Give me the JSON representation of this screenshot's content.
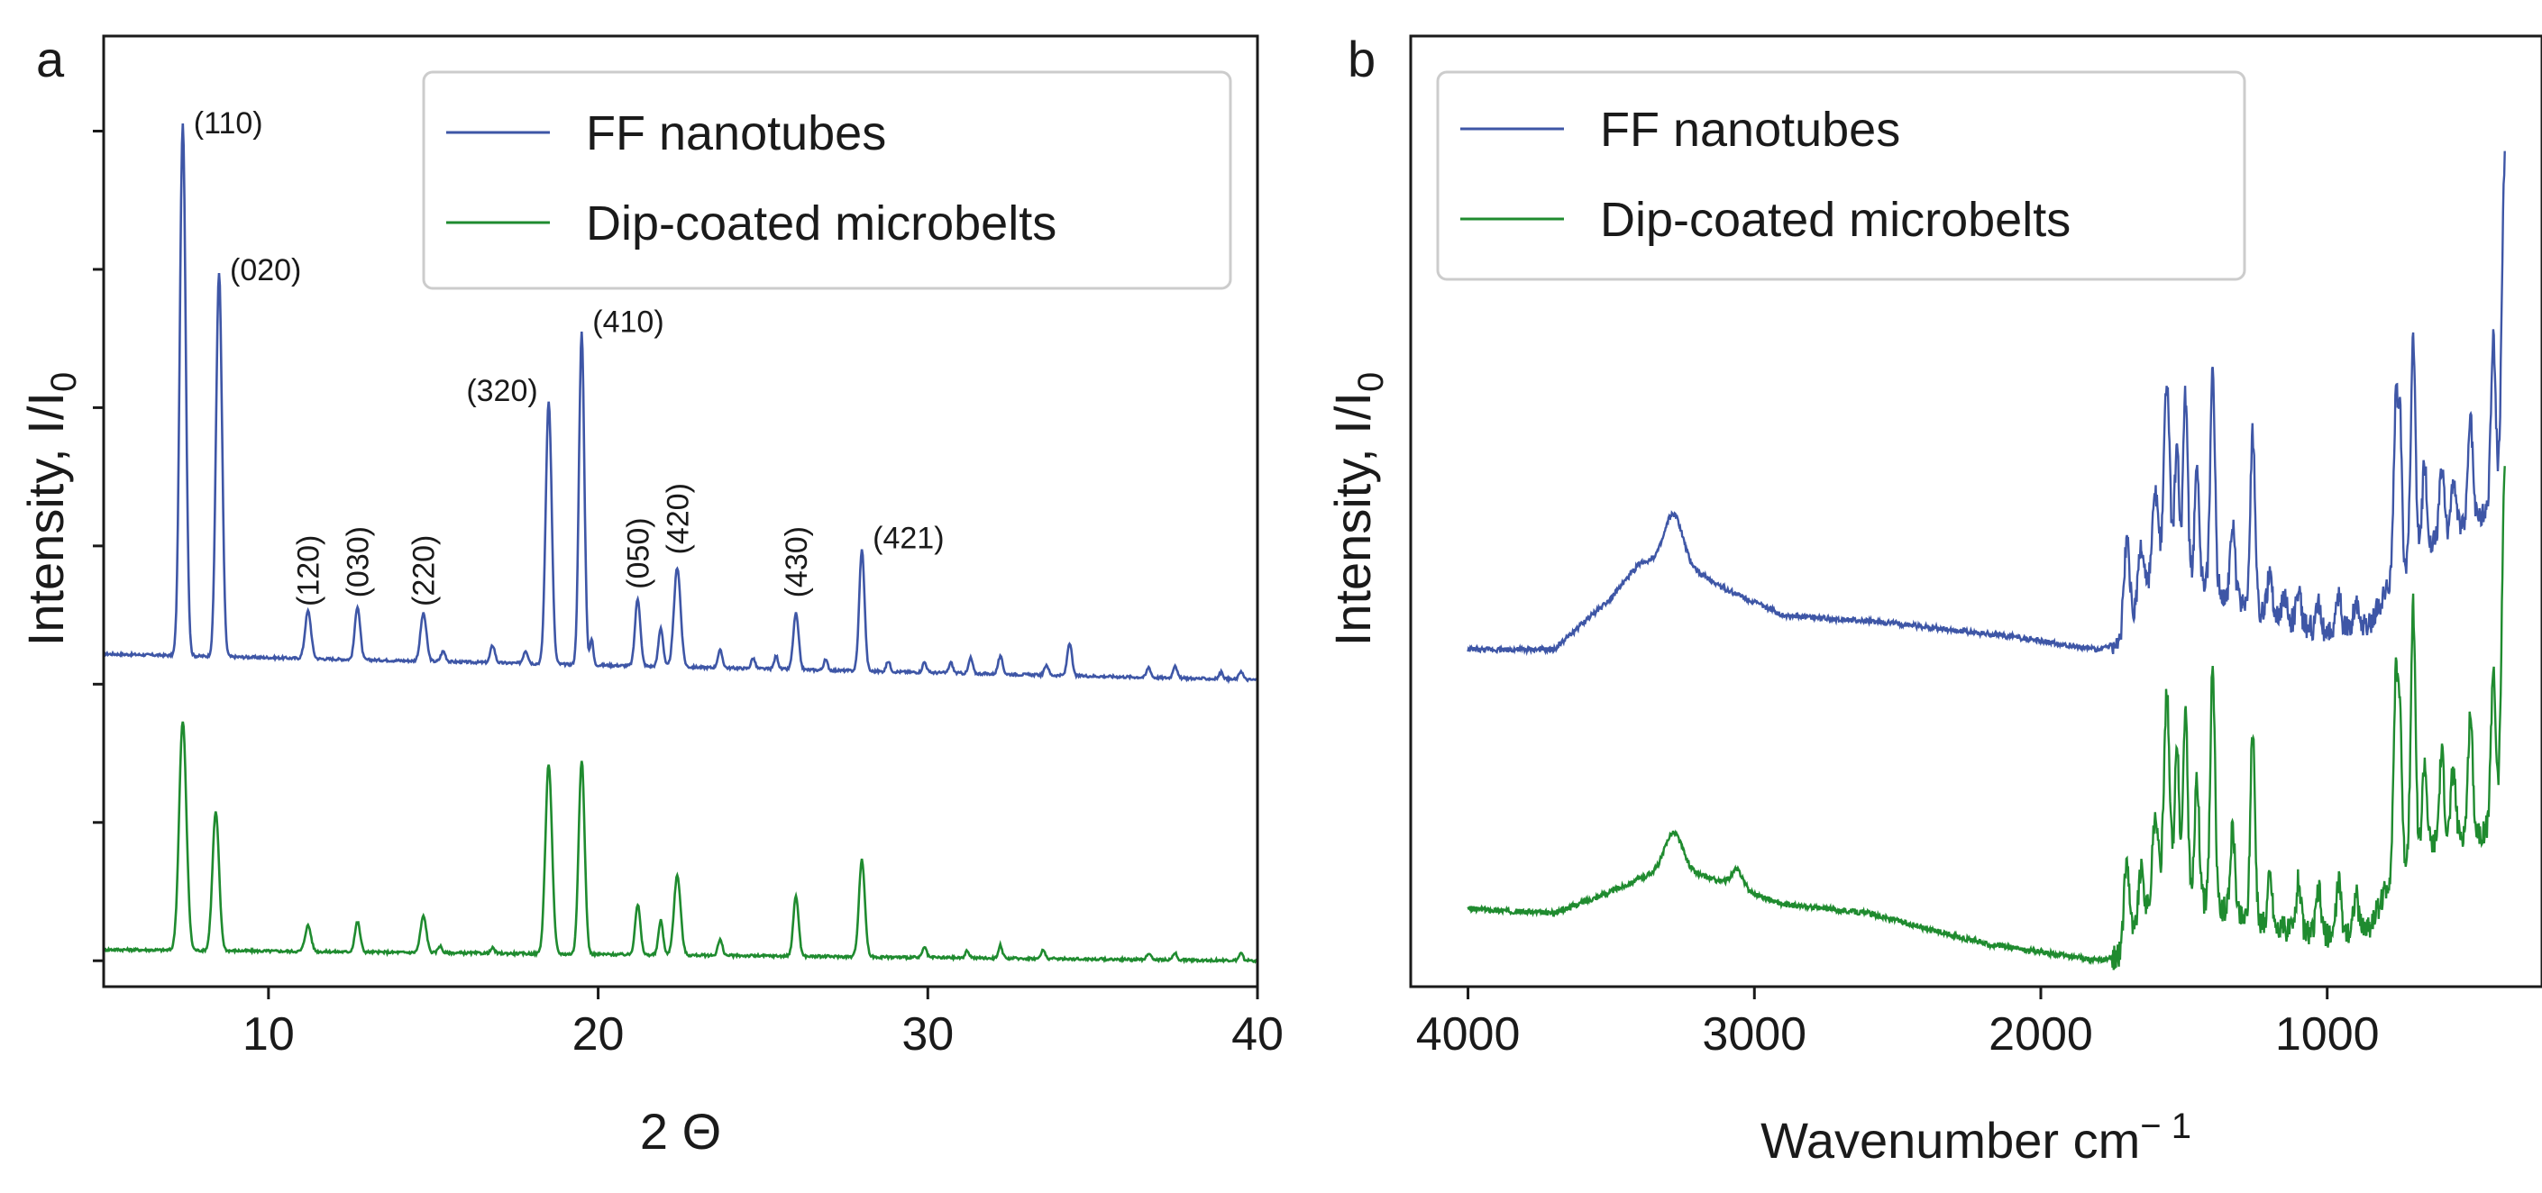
{
  "figure": {
    "panel_a_label": "a",
    "panel_b_label": "b"
  },
  "colors": {
    "blue": "#3e56a6",
    "green": "#1f8b2f",
    "axis": "#1a1a1a",
    "legend_border": "#cccccc"
  },
  "chart_data": [
    {
      "panel": "a",
      "type": "line",
      "xlabel": "2 Θ",
      "ylabel": "Intensity, I/I",
      "ylabel_sub": "0",
      "xlim": [
        5,
        40
      ],
      "ylim": [
        0,
        1.1
      ],
      "xticks": [
        10,
        20,
        30,
        40
      ],
      "ytick_values": [
        0.03,
        0.19,
        0.35,
        0.51,
        0.67,
        0.83,
        0.99
      ],
      "legend": {
        "position": "top-right",
        "entries": [
          "FF nanotubes",
          "Dip-coated microbelts"
        ]
      },
      "series": [
        {
          "name": "FF nanotubes",
          "baseline": 0.385,
          "baseline_end": 0.355,
          "peaks": [
            {
              "x": 7.4,
              "h": 0.615,
              "w": 0.09
            },
            {
              "x": 8.5,
              "h": 0.445,
              "w": 0.09
            },
            {
              "x": 11.2,
              "h": 0.055,
              "w": 0.09
            },
            {
              "x": 12.7,
              "h": 0.062,
              "w": 0.08
            },
            {
              "x": 14.7,
              "h": 0.055,
              "w": 0.09
            },
            {
              "x": 15.3,
              "h": 0.012,
              "w": 0.07
            },
            {
              "x": 16.8,
              "h": 0.02,
              "w": 0.07
            },
            {
              "x": 17.8,
              "h": 0.015,
              "w": 0.07
            },
            {
              "x": 18.5,
              "h": 0.305,
              "w": 0.09
            },
            {
              "x": 19.5,
              "h": 0.385,
              "w": 0.08
            },
            {
              "x": 19.8,
              "h": 0.03,
              "w": 0.05
            },
            {
              "x": 21.2,
              "h": 0.078,
              "w": 0.08
            },
            {
              "x": 21.9,
              "h": 0.045,
              "w": 0.07
            },
            {
              "x": 22.4,
              "h": 0.115,
              "w": 0.1
            },
            {
              "x": 23.7,
              "h": 0.02,
              "w": 0.07
            },
            {
              "x": 24.7,
              "h": 0.012,
              "w": 0.06
            },
            {
              "x": 25.4,
              "h": 0.015,
              "w": 0.06
            },
            {
              "x": 26.0,
              "h": 0.065,
              "w": 0.08
            },
            {
              "x": 26.9,
              "h": 0.012,
              "w": 0.06
            },
            {
              "x": 28.0,
              "h": 0.14,
              "w": 0.08
            },
            {
              "x": 28.8,
              "h": 0.012,
              "w": 0.06
            },
            {
              "x": 29.9,
              "h": 0.012,
              "w": 0.06
            },
            {
              "x": 30.7,
              "h": 0.012,
              "w": 0.06
            },
            {
              "x": 31.3,
              "h": 0.018,
              "w": 0.06
            },
            {
              "x": 32.2,
              "h": 0.02,
              "w": 0.07
            },
            {
              "x": 33.6,
              "h": 0.012,
              "w": 0.06
            },
            {
              "x": 34.3,
              "h": 0.038,
              "w": 0.07
            },
            {
              "x": 36.7,
              "h": 0.012,
              "w": 0.06
            },
            {
              "x": 37.5,
              "h": 0.015,
              "w": 0.06
            },
            {
              "x": 38.9,
              "h": 0.008,
              "w": 0.06
            },
            {
              "x": 39.5,
              "h": 0.01,
              "w": 0.06
            }
          ]
        },
        {
          "name": "Dip-coated microbelts",
          "baseline": 0.043,
          "baseline_end": 0.03,
          "peaks": [
            {
              "x": 7.4,
              "h": 0.265,
              "w": 0.11
            },
            {
              "x": 8.4,
              "h": 0.16,
              "w": 0.1
            },
            {
              "x": 11.2,
              "h": 0.03,
              "w": 0.09
            },
            {
              "x": 12.7,
              "h": 0.035,
              "w": 0.08
            },
            {
              "x": 14.7,
              "h": 0.042,
              "w": 0.09
            },
            {
              "x": 15.2,
              "h": 0.008,
              "w": 0.06
            },
            {
              "x": 16.8,
              "h": 0.006,
              "w": 0.06
            },
            {
              "x": 18.5,
              "h": 0.22,
              "w": 0.1
            },
            {
              "x": 19.5,
              "h": 0.225,
              "w": 0.09
            },
            {
              "x": 21.2,
              "h": 0.058,
              "w": 0.08
            },
            {
              "x": 21.9,
              "h": 0.04,
              "w": 0.07
            },
            {
              "x": 22.4,
              "h": 0.092,
              "w": 0.1
            },
            {
              "x": 23.7,
              "h": 0.018,
              "w": 0.07
            },
            {
              "x": 26.0,
              "h": 0.07,
              "w": 0.08
            },
            {
              "x": 28.0,
              "h": 0.112,
              "w": 0.09
            },
            {
              "x": 29.9,
              "h": 0.012,
              "w": 0.06
            },
            {
              "x": 31.2,
              "h": 0.008,
              "w": 0.06
            },
            {
              "x": 32.2,
              "h": 0.015,
              "w": 0.06
            },
            {
              "x": 33.5,
              "h": 0.01,
              "w": 0.06
            },
            {
              "x": 36.7,
              "h": 0.008,
              "w": 0.06
            },
            {
              "x": 37.5,
              "h": 0.008,
              "w": 0.06
            },
            {
              "x": 39.5,
              "h": 0.008,
              "w": 0.06
            }
          ]
        }
      ],
      "annotations": [
        {
          "text": "(110)",
          "x": 7.4,
          "y": 1.0,
          "rotate": false
        },
        {
          "text": "(020)",
          "x": 8.5,
          "y": 0.83,
          "rotate": false
        },
        {
          "text": "(120)",
          "x": 11.2,
          "y": 0.44,
          "rotate": true
        },
        {
          "text": "(030)",
          "x": 12.7,
          "y": 0.45,
          "rotate": true
        },
        {
          "text": "(220)",
          "x": 14.7,
          "y": 0.44,
          "rotate": true
        },
        {
          "text": "(320)",
          "x": 18.5,
          "y": 0.69,
          "rotate": false
        },
        {
          "text": "(410)",
          "x": 19.5,
          "y": 0.77,
          "rotate": false
        },
        {
          "text": "(050)",
          "x": 21.2,
          "y": 0.46,
          "rotate": true
        },
        {
          "text": "(420)",
          "x": 22.4,
          "y": 0.5,
          "rotate": true
        },
        {
          "text": "(430)",
          "x": 26.0,
          "y": 0.45,
          "rotate": true
        },
        {
          "text": "(421)",
          "x": 28.0,
          "y": 0.52,
          "rotate": false
        }
      ]
    },
    {
      "panel": "b",
      "type": "line",
      "xlabel": "Wavenumber cm",
      "xlabel_sup": "− 1",
      "ylabel": "Intensity, I/I",
      "ylabel_sub": "0",
      "xlim": [
        4200,
        250
      ],
      "ylim": [
        0,
        1.1
      ],
      "xticks": [
        4000,
        3000,
        2000,
        1000
      ],
      "legend": {
        "position": "top-left",
        "entries": [
          "FF nanotubes",
          "Dip-coated microbelts"
        ]
      },
      "series": [
        {
          "name": "FF nanotubes",
          "baseline_points": [
            [
              4000,
              0.39
            ],
            [
              3700,
              0.39
            ],
            [
              3500,
              0.45
            ],
            [
              3400,
              0.49
            ],
            [
              3300,
              0.5
            ],
            [
              3100,
              0.46
            ],
            [
              2900,
              0.43
            ],
            [
              2500,
              0.42
            ],
            [
              2100,
              0.405
            ],
            [
              1800,
              0.39
            ],
            [
              1720,
              0.4
            ],
            [
              1600,
              0.48
            ],
            [
              1450,
              0.47
            ],
            [
              1200,
              0.43
            ],
            [
              1000,
              0.41
            ],
            [
              850,
              0.42
            ],
            [
              760,
              0.48
            ],
            [
              600,
              0.52
            ],
            [
              450,
              0.55
            ],
            [
              380,
              0.56
            ]
          ],
          "peaks": [
            {
              "x": 3280,
              "h": 0.05,
              "w": 30
            },
            {
              "x": 1700,
              "h": 0.1,
              "w": 10
            },
            {
              "x": 1650,
              "h": 0.06,
              "w": 10
            },
            {
              "x": 1600,
              "h": 0.09,
              "w": 10
            },
            {
              "x": 1560,
              "h": 0.22,
              "w": 10
            },
            {
              "x": 1525,
              "h": 0.15,
              "w": 8
            },
            {
              "x": 1495,
              "h": 0.21,
              "w": 8
            },
            {
              "x": 1455,
              "h": 0.12,
              "w": 8
            },
            {
              "x": 1400,
              "h": 0.25,
              "w": 8
            },
            {
              "x": 1330,
              "h": 0.08,
              "w": 8
            },
            {
              "x": 1260,
              "h": 0.2,
              "w": 8
            },
            {
              "x": 1200,
              "h": 0.05,
              "w": 8
            },
            {
              "x": 1150,
              "h": 0.03,
              "w": 8
            },
            {
              "x": 1100,
              "h": 0.04,
              "w": 8
            },
            {
              "x": 1030,
              "h": 0.03,
              "w": 8
            },
            {
              "x": 960,
              "h": 0.04,
              "w": 8
            },
            {
              "x": 900,
              "h": 0.03,
              "w": 8
            },
            {
              "x": 760,
              "h": 0.2,
              "w": 8
            },
            {
              "x": 745,
              "h": 0.15,
              "w": 6
            },
            {
              "x": 700,
              "h": 0.25,
              "w": 8
            },
            {
              "x": 660,
              "h": 0.1,
              "w": 8
            },
            {
              "x": 600,
              "h": 0.08,
              "w": 8
            },
            {
              "x": 560,
              "h": 0.06,
              "w": 8
            },
            {
              "x": 500,
              "h": 0.12,
              "w": 8
            },
            {
              "x": 420,
              "h": 0.2,
              "w": 8
            },
            {
              "x": 380,
              "h": 0.4,
              "w": 10
            }
          ]
        },
        {
          "name": "Dip-coated microbelts",
          "baseline_points": [
            [
              4000,
              0.09
            ],
            [
              3700,
              0.085
            ],
            [
              3500,
              0.11
            ],
            [
              3300,
              0.14
            ],
            [
              3100,
              0.12
            ],
            [
              2900,
              0.095
            ],
            [
              2600,
              0.085
            ],
            [
              2200,
              0.05
            ],
            [
              2000,
              0.04
            ],
            [
              1800,
              0.03
            ],
            [
              1720,
              0.035
            ],
            [
              1600,
              0.1
            ],
            [
              1450,
              0.1
            ],
            [
              1200,
              0.07
            ],
            [
              1000,
              0.06
            ],
            [
              850,
              0.07
            ],
            [
              760,
              0.14
            ],
            [
              600,
              0.17
            ],
            [
              450,
              0.18
            ],
            [
              380,
              0.2
            ]
          ],
          "peaks": [
            {
              "x": 3280,
              "h": 0.04,
              "w": 30
            },
            {
              "x": 3060,
              "h": 0.02,
              "w": 20
            },
            {
              "x": 1700,
              "h": 0.1,
              "w": 10
            },
            {
              "x": 1650,
              "h": 0.06,
              "w": 10
            },
            {
              "x": 1600,
              "h": 0.1,
              "w": 10
            },
            {
              "x": 1560,
              "h": 0.24,
              "w": 10
            },
            {
              "x": 1525,
              "h": 0.18,
              "w": 8
            },
            {
              "x": 1495,
              "h": 0.22,
              "w": 8
            },
            {
              "x": 1455,
              "h": 0.14,
              "w": 8
            },
            {
              "x": 1400,
              "h": 0.28,
              "w": 8
            },
            {
              "x": 1330,
              "h": 0.1,
              "w": 8
            },
            {
              "x": 1260,
              "h": 0.22,
              "w": 8
            },
            {
              "x": 1200,
              "h": 0.06,
              "w": 8
            },
            {
              "x": 1100,
              "h": 0.06,
              "w": 8
            },
            {
              "x": 1030,
              "h": 0.05,
              "w": 8
            },
            {
              "x": 960,
              "h": 0.06,
              "w": 8
            },
            {
              "x": 900,
              "h": 0.04,
              "w": 8
            },
            {
              "x": 760,
              "h": 0.22,
              "w": 8
            },
            {
              "x": 745,
              "h": 0.15,
              "w": 6
            },
            {
              "x": 700,
              "h": 0.29,
              "w": 8
            },
            {
              "x": 660,
              "h": 0.1,
              "w": 8
            },
            {
              "x": 600,
              "h": 0.1,
              "w": 8
            },
            {
              "x": 560,
              "h": 0.08,
              "w": 8
            },
            {
              "x": 500,
              "h": 0.14,
              "w": 8
            },
            {
              "x": 420,
              "h": 0.18,
              "w": 8
            },
            {
              "x": 380,
              "h": 0.4,
              "w": 10
            }
          ]
        }
      ]
    }
  ]
}
